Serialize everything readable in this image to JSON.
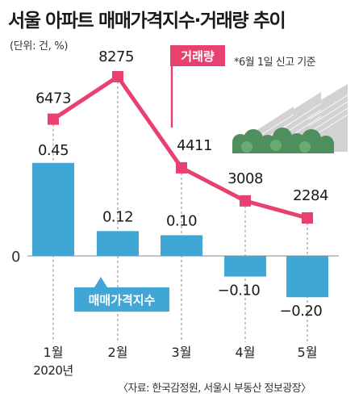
{
  "header": {
    "title": "서울 아파트 매매가격지수·거래량 추이",
    "unit": "(단위: 건, %)",
    "note": "*6월 1일 신고 기준"
  },
  "footer": {
    "source": "〈자료: 한국감정원, 서울시 부동산 정보광장〉"
  },
  "colors": {
    "bar": "#3fa6d6",
    "line": "#e8416f",
    "guide": "#888888",
    "baseline": "#b0b0b0"
  },
  "icons": [
    "apartment-building-illustration"
  ],
  "chart_data": [
    {
      "type": "bar",
      "name": "매매가격지수",
      "categories": [
        "1월",
        "2월",
        "3월",
        "4월",
        "5월"
      ],
      "values": [
        0.45,
        0.12,
        0.1,
        -0.1,
        -0.2
      ],
      "value_labels": [
        "0.45",
        "0.12",
        "0.10",
        "−0.10",
        "−0.20"
      ],
      "axis_label": "0",
      "year_label": "2020년"
    },
    {
      "type": "line",
      "name": "거래량",
      "categories": [
        "1월",
        "2월",
        "3월",
        "4월",
        "5월"
      ],
      "values": [
        6473,
        8275,
        4411,
        3008,
        2284
      ],
      "value_labels": [
        "6473",
        "8275",
        "4411",
        "3008",
        "2284"
      ]
    }
  ]
}
